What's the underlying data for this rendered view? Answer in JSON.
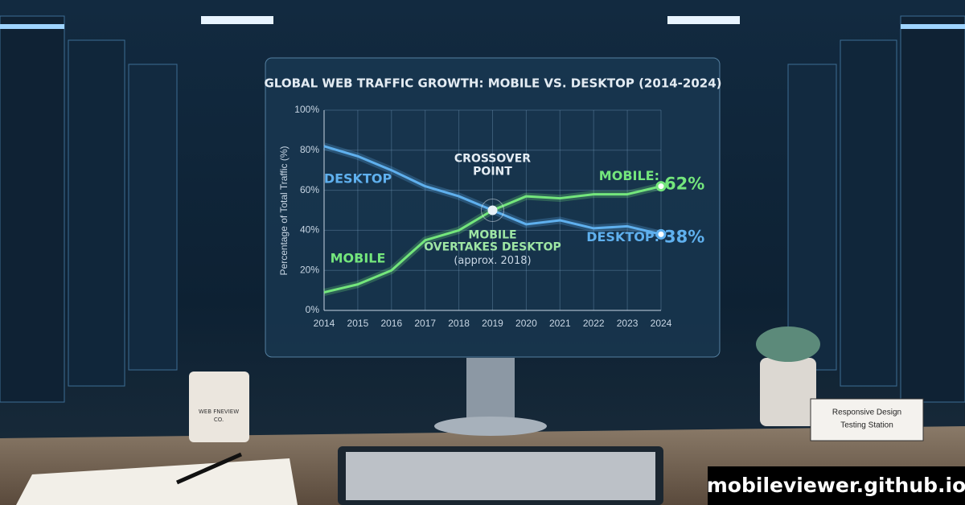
{
  "chart_data": {
    "type": "line",
    "title": "GLOBAL WEB TRAFFIC GROWTH: MOBILE VS. DESKTOP (2014-2024)",
    "y_label": "Percentage of Total Traffic (%)",
    "x": [
      2014,
      2015,
      2016,
      2017,
      2018,
      2019,
      2020,
      2021,
      2022,
      2023,
      2024
    ],
    "xlim": [
      2014,
      2024
    ],
    "xticks": [
      2014,
      2015,
      2016,
      2017,
      2018,
      2019,
      2020,
      2021,
      2022,
      2023,
      2024
    ],
    "ylim": [
      0,
      100
    ],
    "yticks": [
      {
        "value": 0,
        "label": "0%"
      },
      {
        "value": 20,
        "label": "20%"
      },
      {
        "value": 40,
        "label": "40%"
      },
      {
        "value": 60,
        "label": "60%"
      },
      {
        "value": 80,
        "label": "80%"
      },
      {
        "value": 100,
        "label": "100%"
      }
    ],
    "grid": true,
    "series": [
      {
        "name": "DESKTOP",
        "color": "#5fb0ee",
        "values": [
          82,
          77,
          70,
          62,
          57,
          50,
          43,
          45,
          41,
          42,
          38
        ],
        "value_labels": [
          null,
          null,
          null,
          null,
          null,
          null,
          null,
          null,
          null,
          null,
          "38%"
        ],
        "end_label": "DESKTOP:"
      },
      {
        "name": "MOBILE",
        "color": "#74e67c",
        "values": [
          9,
          13,
          20,
          35,
          40,
          50,
          57,
          56,
          58,
          58,
          62
        ],
        "value_labels": [
          null,
          null,
          null,
          null,
          null,
          null,
          null,
          null,
          null,
          null,
          "62%"
        ],
        "end_label": "MOBILE:"
      }
    ],
    "annotations": [
      {
        "text": "CROSSOVER",
        "x": 2019,
        "y": 50
      },
      {
        "text": "POINT",
        "x": 2019,
        "y": 50
      },
      {
        "text": "MOBILE",
        "x": 2019,
        "y": 50
      },
      {
        "text": "OVERTAKES DESKTOP",
        "x": 2019,
        "y": 50
      },
      {
        "text": "(approx. 2018)",
        "x": 2019,
        "y": 50
      }
    ]
  },
  "scene": {
    "mug_text": "WEB FNEVIEW",
    "mug_text2": "CO.",
    "sign_line1": "Responsive Design",
    "sign_line2": "Testing Station",
    "watermark": "mobileviewer.github.io"
  }
}
